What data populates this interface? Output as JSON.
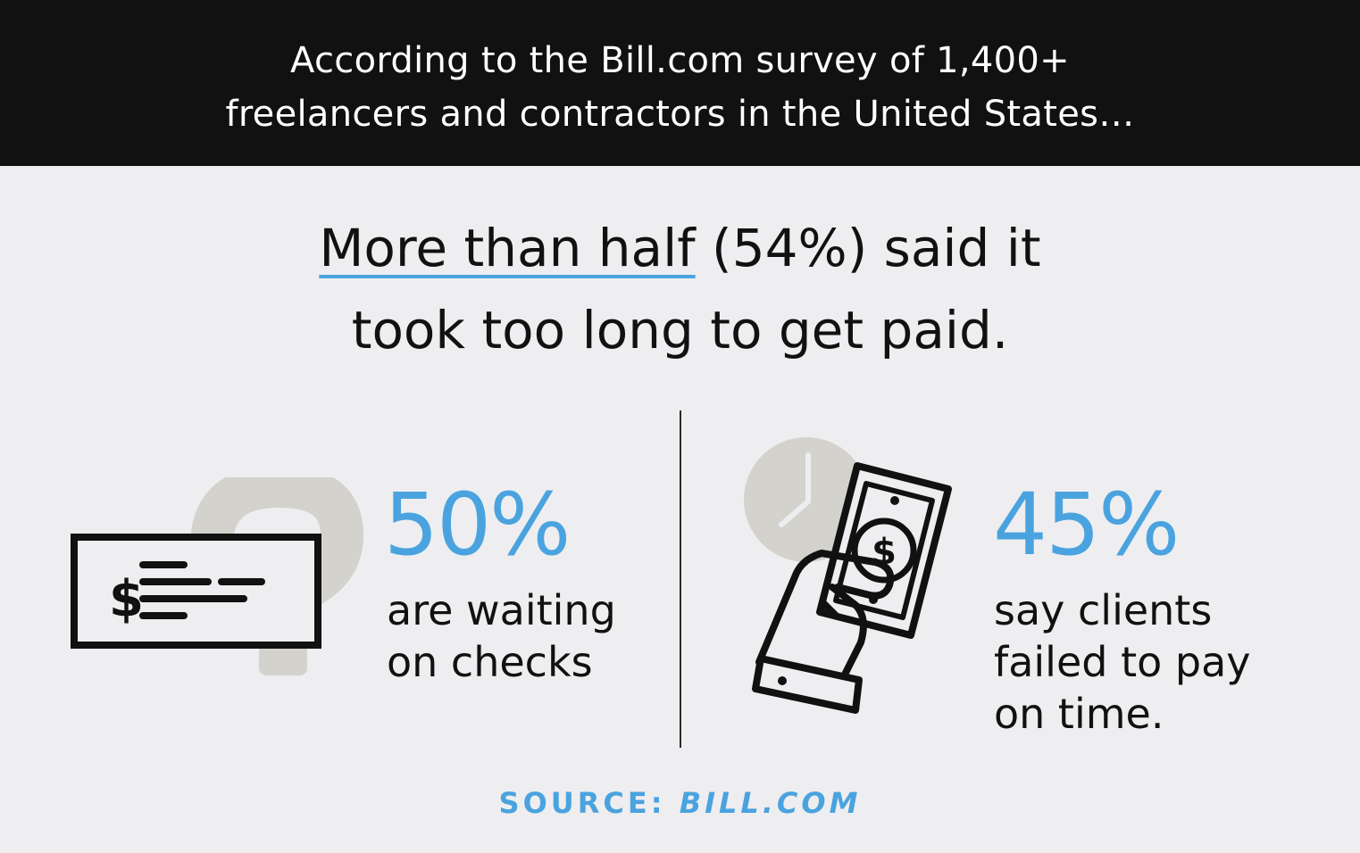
{
  "banner": {
    "line1": "According to the Bill.com survey of 1,400+",
    "line2": "freelancers and contractors in the United States…"
  },
  "headline": {
    "underlined": "More than half",
    "rest_line1": " (54%) said it",
    "line2": "took too long to get paid."
  },
  "stats": [
    {
      "value": "50%",
      "caption_lines": [
        "are waiting",
        "on checks"
      ],
      "icon": "check-with-question-mark-icon"
    },
    {
      "value": "45%",
      "caption_lines": [
        "say clients",
        "failed to pay",
        "on time."
      ],
      "icon": "hand-holding-money-with-clock-icon"
    }
  ],
  "source": {
    "label": "SOURCE: ",
    "name": "BILL.COM"
  },
  "colors": {
    "accent": "#4aa3df",
    "banner_bg": "#111111",
    "page_bg": "#eeeef0",
    "illustration_gray": "#d3d2cc"
  }
}
